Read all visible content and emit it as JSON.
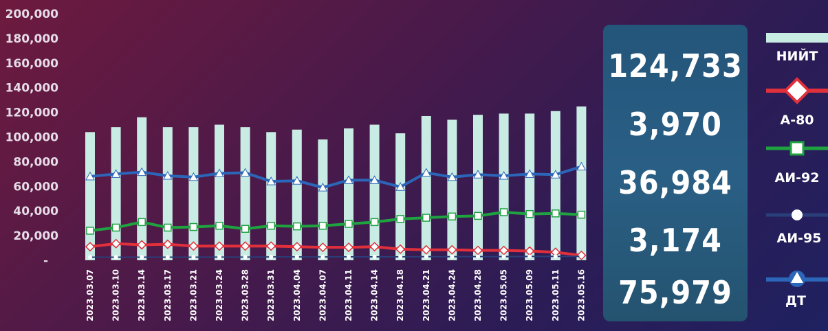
{
  "chart_data": {
    "type": "bar+line",
    "categories": [
      "2023.03.07",
      "2023.03.10",
      "2023.03.14",
      "2023.03.17",
      "2023.03.21",
      "2023.03.24",
      "2023.03.28",
      "2023.03.31",
      "2023.04.04",
      "2023.04.07",
      "2023.04.11",
      "2023.04.14",
      "2023.04.18",
      "2023.04.21",
      "2023.04.24",
      "2023.04.28",
      "2023.05.05",
      "2023.05.09",
      "2023.05.11",
      "2023.05.16"
    ],
    "y_ticks": [
      "200,000",
      "180,000",
      "160,000",
      "140,000",
      "120,000",
      "100,000",
      "80,000",
      "60,000",
      "40,000",
      "20,000",
      "-"
    ],
    "ylim": [
      0,
      200000
    ],
    "series": [
      {
        "name": "НИЙТ",
        "kind": "bar",
        "color": "#c8ece4",
        "values": [
          104000,
          108000,
          116000,
          108000,
          108000,
          110000,
          108000,
          104000,
          106000,
          98000,
          107000,
          110000,
          103000,
          117000,
          114000,
          118000,
          119000,
          119000,
          121000,
          124733
        ]
      },
      {
        "name": "А-80",
        "kind": "line",
        "marker": "diamond",
        "color": "#e0303c",
        "values": [
          11000,
          13500,
          12500,
          13000,
          11500,
          11500,
          11500,
          11500,
          11000,
          10500,
          10500,
          11000,
          9000,
          8500,
          8500,
          8000,
          8000,
          7500,
          6500,
          3970
        ]
      },
      {
        "name": "АИ-92",
        "kind": "line",
        "marker": "square",
        "color": "#1fa340",
        "values": [
          24000,
          26500,
          31000,
          26500,
          27000,
          28000,
          25500,
          28000,
          27500,
          28000,
          29500,
          31000,
          33500,
          34500,
          35500,
          36000,
          39000,
          37500,
          38000,
          36984
        ]
      },
      {
        "name": "АИ-95",
        "kind": "line",
        "marker": "circle",
        "color": "#ffffff",
        "values": [
          2500,
          2500,
          2500,
          2500,
          2500,
          2600,
          2600,
          2700,
          2700,
          2700,
          2800,
          2800,
          2800,
          2900,
          2900,
          3000,
          3000,
          3100,
          3100,
          3174
        ]
      },
      {
        "name": "ДТ",
        "kind": "line",
        "marker": "triangle",
        "color": "#2c66b8",
        "values": [
          68000,
          70000,
          71500,
          68500,
          67500,
          70500,
          71000,
          64000,
          64500,
          59000,
          65000,
          65000,
          59500,
          71000,
          67500,
          69500,
          68500,
          70000,
          69500,
          75979
        ]
      }
    ],
    "latest_totals": [
      "124,733",
      "3,970",
      "36,984",
      "3,174",
      "75,979"
    ]
  }
}
